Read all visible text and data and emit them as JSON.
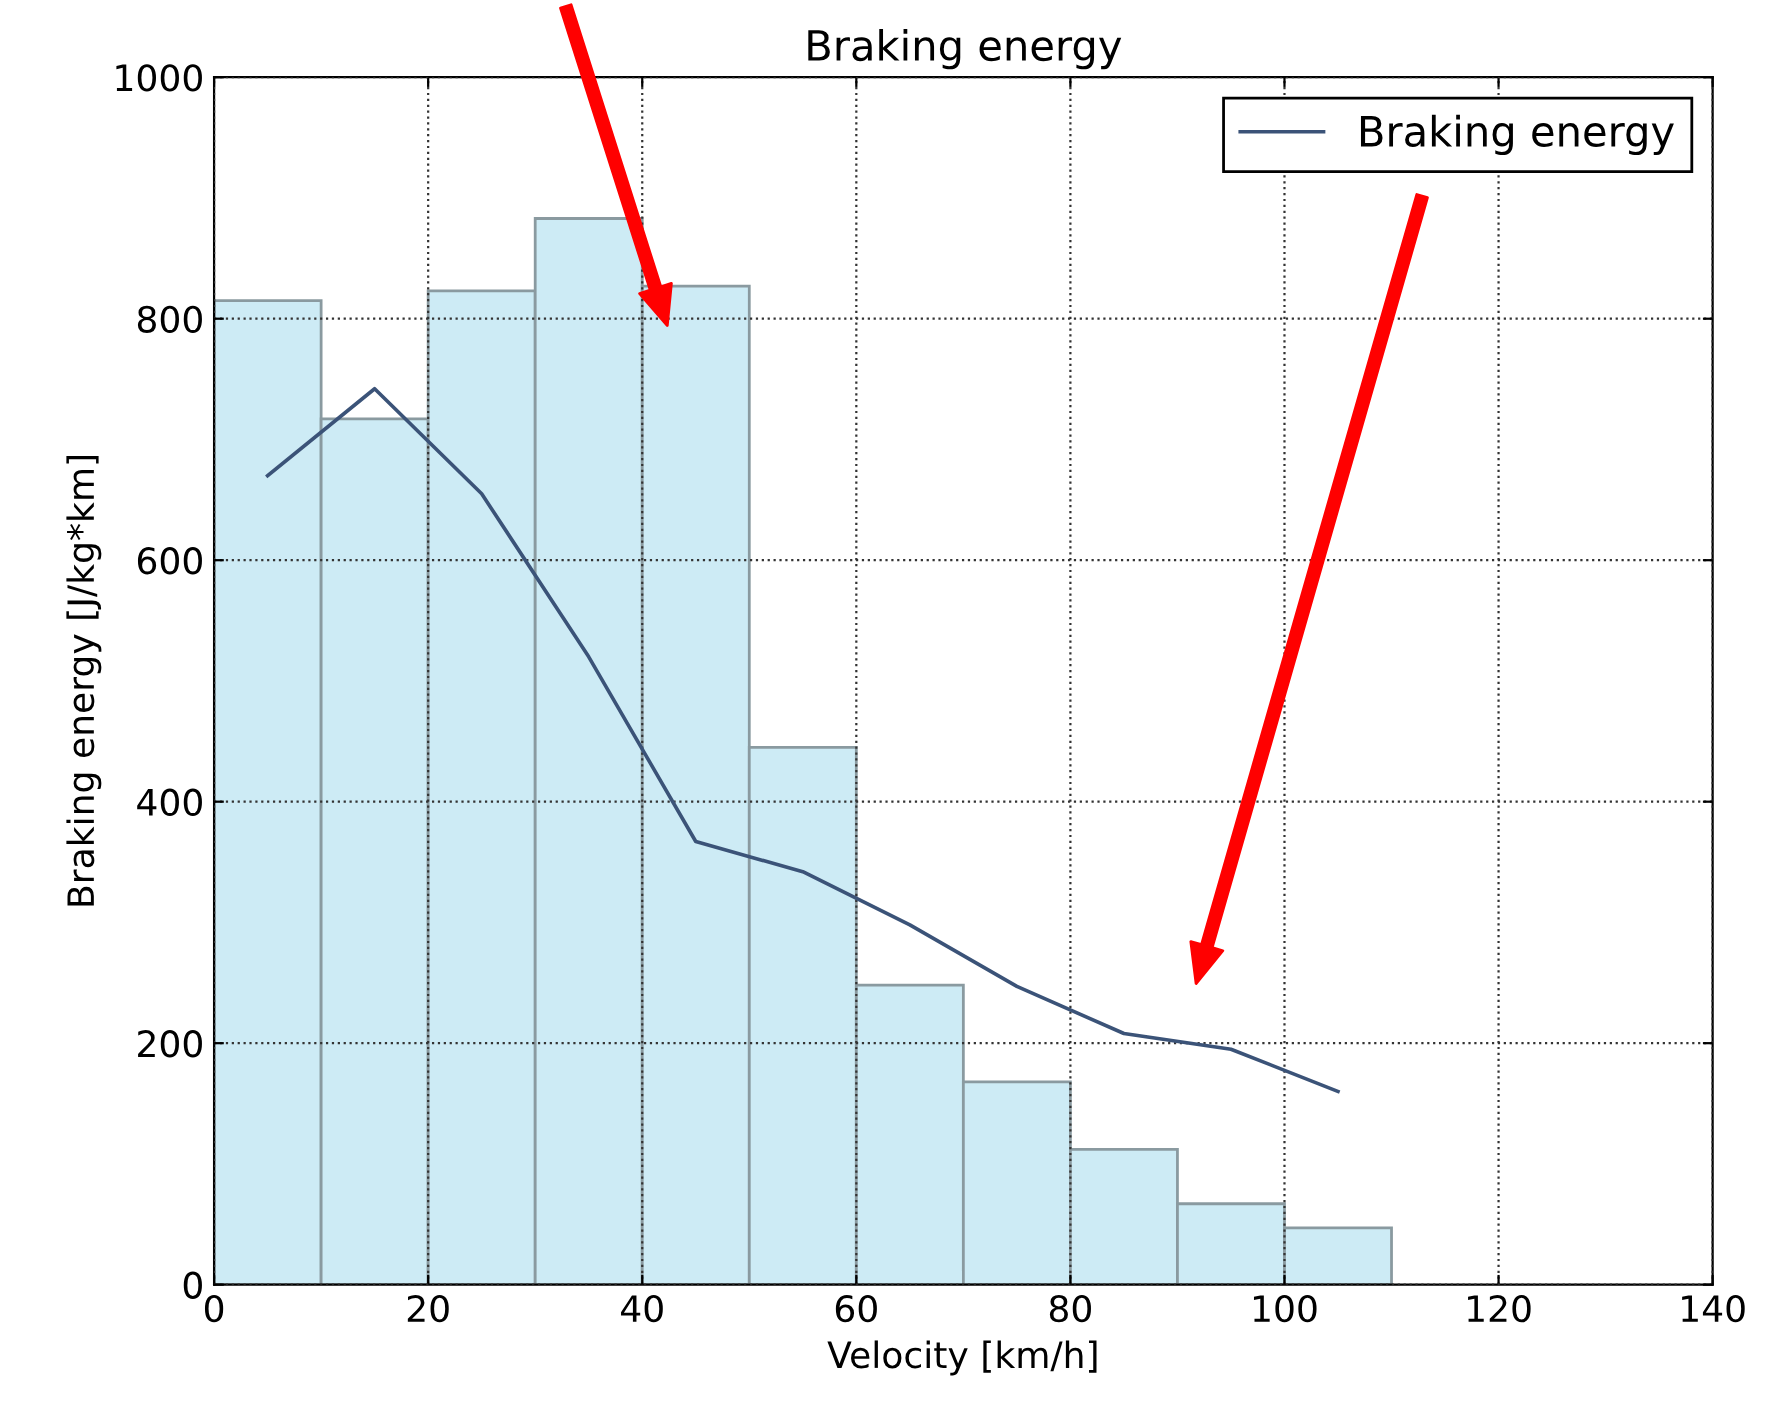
{
  "chart_data": {
    "type": "histogram",
    "title": "Braking energy",
    "xlabel": "Velocity [km/h]",
    "ylabel": "Braking energy [J/kg*km]",
    "bins": [
      0,
      10,
      20,
      30,
      40,
      50,
      60,
      70,
      80,
      90,
      100,
      110
    ],
    "values": [
      815,
      717,
      823,
      883,
      827,
      445,
      248,
      168,
      112,
      67,
      47
    ],
    "color": "#cdebf5",
    "series": [
      {
        "type": "line",
        "name": "Braking energy",
        "color": "#3b5378",
        "x": [
          5,
          15,
          25,
          35,
          45,
          55,
          65,
          75,
          85,
          95,
          105
        ],
        "values": [
          670,
          742,
          655,
          520,
          367,
          342,
          298,
          247,
          208,
          195,
          160
        ]
      }
    ],
    "xlim": [
      0,
      140
    ],
    "xticks": [
      0,
      20,
      40,
      60,
      80,
      100,
      120,
      140
    ],
    "ylim": [
      0,
      1000
    ],
    "yticks": [
      0,
      200,
      400,
      600,
      800,
      1000
    ],
    "grid": true,
    "legend": "top right"
  }
}
